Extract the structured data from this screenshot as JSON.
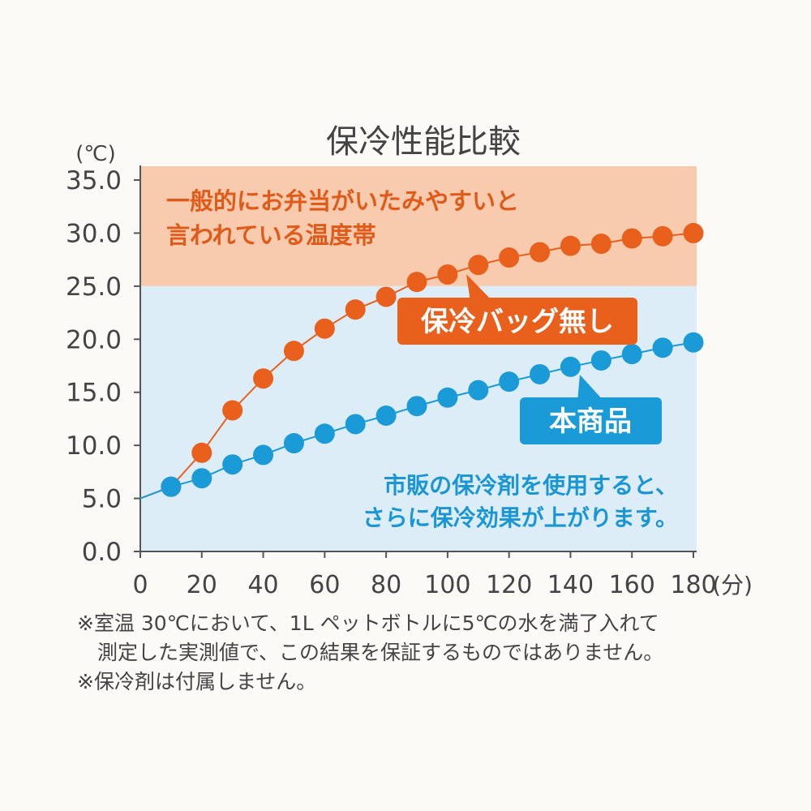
{
  "chart_data": {
    "type": "scatter",
    "title": "保冷性能比較",
    "ylabel": "(℃)",
    "xlabel": "(分)",
    "ylim": [
      0,
      35
    ],
    "xlim": [
      0,
      180
    ],
    "yticks": [
      "0.0",
      "5.0",
      "10.0",
      "15.0",
      "20.0",
      "25.0",
      "30.0",
      "35.0"
    ],
    "xticks": [
      "0",
      "20",
      "40",
      "60",
      "80",
      "100",
      "120",
      "140",
      "160",
      "180"
    ],
    "x": [
      10,
      20,
      30,
      40,
      50,
      60,
      70,
      80,
      90,
      100,
      110,
      120,
      130,
      140,
      150,
      160,
      170,
      180
    ],
    "start": {
      "x": 0,
      "y": 5.0
    },
    "series": [
      {
        "name": "保冷バッグ無し",
        "color": "#e8601c",
        "values": [
          6.1,
          9.3,
          13.3,
          16.3,
          18.9,
          21.0,
          22.8,
          24.0,
          25.4,
          26.1,
          27.0,
          27.7,
          28.2,
          28.8,
          29.0,
          29.5,
          29.7,
          30.0
        ]
      },
      {
        "name": "本商品",
        "color": "#1a9ad6",
        "values": [
          6.1,
          6.9,
          8.2,
          9.1,
          10.2,
          11.1,
          12.0,
          12.8,
          13.7,
          14.5,
          15.2,
          16.0,
          16.7,
          17.4,
          18.0,
          18.6,
          19.2,
          19.7
        ]
      }
    ],
    "bands": [
      {
        "from": 25,
        "to": 36.3,
        "color": "#f8cbae",
        "label_lines": [
          "一般的にお弁当がいたみやすいと",
          "言われている温度帯"
        ]
      },
      {
        "from": 0,
        "to": 25,
        "color": "#dcedf8"
      }
    ],
    "annotation_lines": [
      "市販の保冷剤を使用すると、",
      "さらに保冷効果が上がります。"
    ]
  },
  "notes": [
    "※室温 30℃において、1L ペットボトルに5℃の水を満了入れて",
    "　測定した実測値で、この結果を保証するものではありません。",
    "※保冷剤は付属しません。"
  ]
}
